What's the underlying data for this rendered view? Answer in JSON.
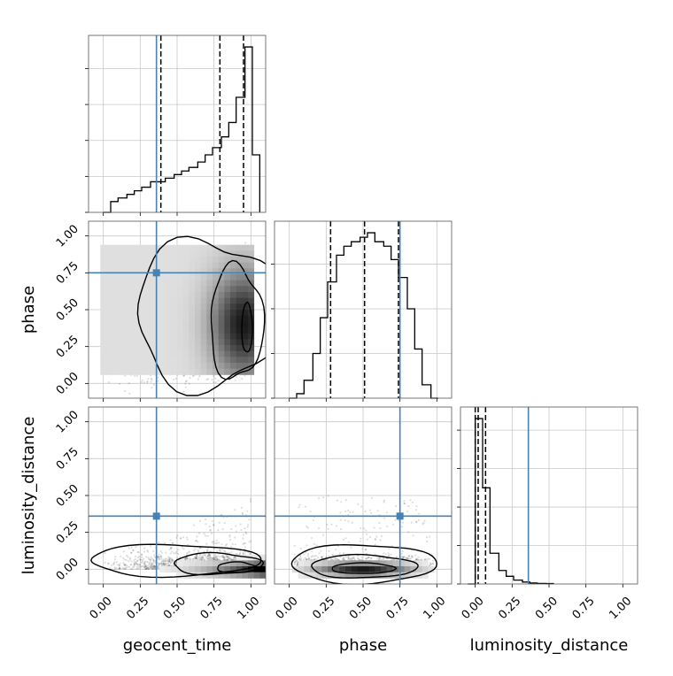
{
  "figure": {
    "type": "corner",
    "parameters": [
      "geocent_time",
      "phase",
      "luminosity_distance"
    ],
    "axis_labels": [
      "geocent_time",
      "phase",
      "luminosity_distance"
    ],
    "ticks": [
      "0.00",
      "0.25",
      "0.50",
      "0.75",
      "1.00"
    ],
    "truth_color": "#4682b4",
    "hist_color": "#000000",
    "grid": true
  },
  "chart_data": [
    {
      "type": "bar",
      "panel": "geocent_time-marginal",
      "xlabel": "geocent_time",
      "xlim": [
        -0.1,
        1.1
      ],
      "bins": [
        [
          0.0,
          0.05
        ],
        [
          0.05,
          0.1
        ],
        [
          0.1,
          0.16
        ],
        [
          0.16,
          0.21
        ],
        [
          0.21,
          0.26
        ],
        [
          0.26,
          0.32
        ],
        [
          0.32,
          0.37
        ],
        [
          0.37,
          0.42
        ],
        [
          0.42,
          0.48
        ],
        [
          0.48,
          0.53
        ],
        [
          0.53,
          0.58
        ],
        [
          0.58,
          0.64
        ],
        [
          0.64,
          0.69
        ],
        [
          0.69,
          0.74
        ],
        [
          0.74,
          0.8
        ],
        [
          0.8,
          0.85
        ],
        [
          0.85,
          0.9
        ],
        [
          0.9,
          0.96
        ],
        [
          0.96,
          1.01
        ],
        [
          1.01,
          1.06
        ]
      ],
      "values": [
        0.0,
        0.06,
        0.08,
        0.1,
        0.12,
        0.14,
        0.17,
        0.17,
        0.19,
        0.21,
        0.23,
        0.25,
        0.28,
        0.32,
        0.36,
        0.42,
        0.5,
        0.64,
        0.92,
        0.32
      ],
      "quantiles": [
        0.39,
        0.79,
        0.95
      ],
      "truth": 0.36
    },
    {
      "type": "bar",
      "panel": "phase-marginal",
      "xlabel": "phase",
      "xlim": [
        -0.1,
        1.1
      ],
      "bins": [
        [
          0.0,
          0.05
        ],
        [
          0.05,
          0.1
        ],
        [
          0.1,
          0.16
        ],
        [
          0.16,
          0.21
        ],
        [
          0.21,
          0.26
        ],
        [
          0.26,
          0.32
        ],
        [
          0.32,
          0.37
        ],
        [
          0.37,
          0.42
        ],
        [
          0.42,
          0.48
        ],
        [
          0.48,
          0.53
        ],
        [
          0.53,
          0.58
        ],
        [
          0.58,
          0.64
        ],
        [
          0.64,
          0.69
        ],
        [
          0.69,
          0.74
        ],
        [
          0.74,
          0.8
        ],
        [
          0.8,
          0.85
        ],
        [
          0.85,
          0.9
        ],
        [
          0.9,
          0.96
        ],
        [
          0.96,
          1.01
        ]
      ],
      "values": [
        0.0,
        0.01,
        0.04,
        0.1,
        0.18,
        0.26,
        0.32,
        0.34,
        0.35,
        0.36,
        0.37,
        0.35,
        0.34,
        0.31,
        0.27,
        0.2,
        0.11,
        0.03,
        0.0
      ],
      "quantiles": [
        0.28,
        0.51,
        0.74
      ],
      "truth": 0.75
    },
    {
      "type": "bar",
      "panel": "luminosity_distance-marginal",
      "xlabel": "luminosity_distance",
      "xlim": [
        -0.1,
        1.1
      ],
      "bins": [
        [
          -0.05,
          0.0
        ],
        [
          0.0,
          0.05
        ],
        [
          0.05,
          0.1
        ],
        [
          0.1,
          0.16
        ],
        [
          0.16,
          0.21
        ],
        [
          0.21,
          0.26
        ],
        [
          0.26,
          0.32
        ],
        [
          0.32,
          0.37
        ],
        [
          0.37,
          0.42
        ],
        [
          0.42,
          0.48
        ],
        [
          0.48,
          0.53
        ]
      ],
      "values": [
        0.0,
        0.86,
        0.5,
        0.16,
        0.07,
        0.04,
        0.02,
        0.01,
        0.005,
        0.003,
        0.002
      ],
      "quantiles": [
        0.0,
        0.02,
        0.07
      ],
      "truth": 0.36
    },
    {
      "type": "scatter",
      "panel": "phase-vs-geocent_time",
      "xlabel": "",
      "ylabel": "phase",
      "xlim": [
        -0.1,
        1.1
      ],
      "ylim": [
        -0.1,
        1.1
      ],
      "truth": [
        0.36,
        0.75
      ],
      "density_peak": [
        0.95,
        0.4
      ],
      "contour_levels": [
        "inner",
        "middle",
        "outer"
      ]
    },
    {
      "type": "scatter",
      "panel": "luminosity_distance-vs-geocent_time",
      "xlabel": "geocent_time",
      "ylabel": "luminosity_distance",
      "xlim": [
        -0.1,
        1.1
      ],
      "ylim": [
        -0.1,
        1.1
      ],
      "truth": [
        0.36,
        0.36
      ],
      "density_peak": [
        0.95,
        0.0
      ],
      "contour_levels": [
        "inner",
        "middle",
        "outer"
      ]
    },
    {
      "type": "scatter",
      "panel": "luminosity_distance-vs-phase",
      "xlabel": "phase",
      "ylabel": "",
      "xlim": [
        -0.1,
        1.1
      ],
      "ylim": [
        -0.1,
        1.1
      ],
      "truth": [
        0.75,
        0.36
      ],
      "density_peak": [
        0.5,
        0.0
      ],
      "contour_levels": [
        "inner",
        "middle",
        "outer"
      ]
    }
  ]
}
